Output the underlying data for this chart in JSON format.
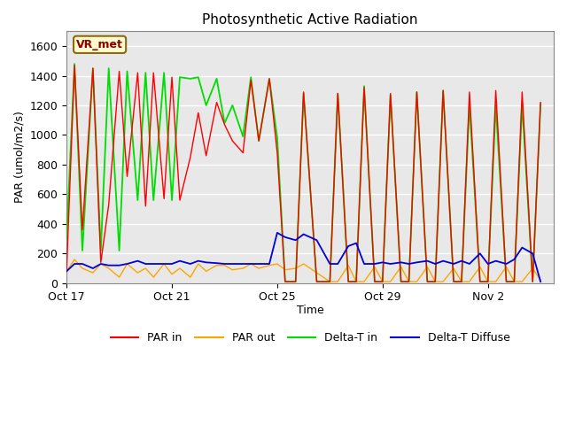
{
  "title": "Photosynthetic Active Radiation",
  "ylabel": "PAR (umol/m2/s)",
  "xlabel": "Time",
  "ylim": [
    0,
    1700
  ],
  "yticks": [
    0,
    200,
    400,
    600,
    800,
    1000,
    1200,
    1400,
    1600
  ],
  "axes_facecolor": "#e8e8e8",
  "fig_facecolor": "#ffffff",
  "annotation_text": "VR_met",
  "colors": {
    "PAR_in": "#ff0000",
    "PAR_out": "#ffa500",
    "Delta_T_in": "#00dd00",
    "Delta_T_Diffuse": "#0000dd"
  },
  "legend_labels": [
    "PAR in",
    "PAR out",
    "Delta-T in",
    "Delta-T Diffuse"
  ],
  "x_tick_labels": [
    "Oct 17",
    "Oct 21",
    "Oct 25",
    "Oct 29",
    "Nov 2"
  ],
  "x_tick_positions": [
    0,
    4,
    8,
    12,
    16
  ],
  "xlim": [
    0,
    18.5
  ],
  "x": [
    0.0,
    0.3,
    0.6,
    1.0,
    1.3,
    1.6,
    2.0,
    2.3,
    2.7,
    3.0,
    3.3,
    3.7,
    4.0,
    4.3,
    4.7,
    5.0,
    5.3,
    5.7,
    6.0,
    6.3,
    6.7,
    7.0,
    7.3,
    7.7,
    8.0,
    8.3,
    8.7,
    9.0,
    9.5,
    10.0,
    10.3,
    10.7,
    11.0,
    11.3,
    11.7,
    12.0,
    12.3,
    12.7,
    13.0,
    13.3,
    13.7,
    14.0,
    14.3,
    14.7,
    15.0,
    15.3,
    15.7,
    16.0,
    16.3,
    16.7,
    17.0,
    17.3,
    17.7,
    18.0
  ],
  "PAR_in": [
    80,
    1470,
    360,
    1450,
    140,
    530,
    1430,
    720,
    1420,
    520,
    1420,
    570,
    1390,
    560,
    850,
    1150,
    860,
    1220,
    1070,
    960,
    880,
    1370,
    960,
    1380,
    880,
    10,
    10,
    1290,
    10,
    10,
    1280,
    10,
    10,
    1320,
    10,
    10,
    1280,
    10,
    10,
    1290,
    10,
    10,
    1300,
    10,
    10,
    1290,
    10,
    10,
    1300,
    10,
    10,
    1290,
    10,
    1220
  ],
  "PAR_out": [
    80,
    160,
    100,
    70,
    130,
    100,
    40,
    130,
    70,
    100,
    40,
    130,
    60,
    100,
    40,
    130,
    80,
    120,
    120,
    90,
    100,
    130,
    100,
    120,
    130,
    90,
    100,
    130,
    70,
    10,
    10,
    120,
    10,
    10,
    110,
    10,
    10,
    110,
    10,
    10,
    110,
    10,
    10,
    100,
    10,
    10,
    110,
    10,
    10,
    110,
    10,
    10,
    100,
    20
  ],
  "Delta_T_in": [
    300,
    1480,
    220,
    1450,
    220,
    1450,
    220,
    1430,
    560,
    1420,
    560,
    1420,
    560,
    1390,
    1380,
    1390,
    1200,
    1380,
    1080,
    1200,
    990,
    1390,
    960,
    1380,
    980,
    10,
    10,
    1280,
    10,
    10,
    1280,
    10,
    10,
    1330,
    10,
    10,
    1270,
    10,
    10,
    1290,
    10,
    10,
    1300,
    10,
    10,
    1210,
    10,
    10,
    1200,
    10,
    10,
    1210,
    10,
    1210
  ],
  "Delta_T_Diffuse": [
    80,
    130,
    130,
    100,
    130,
    120,
    120,
    130,
    150,
    130,
    130,
    130,
    130,
    150,
    130,
    150,
    140,
    135,
    130,
    130,
    130,
    130,
    130,
    130,
    340,
    310,
    290,
    330,
    290,
    130,
    130,
    250,
    270,
    130,
    130,
    140,
    130,
    140,
    130,
    140,
    150,
    130,
    150,
    130,
    150,
    130,
    200,
    130,
    150,
    130,
    160,
    240,
    200,
    10
  ]
}
